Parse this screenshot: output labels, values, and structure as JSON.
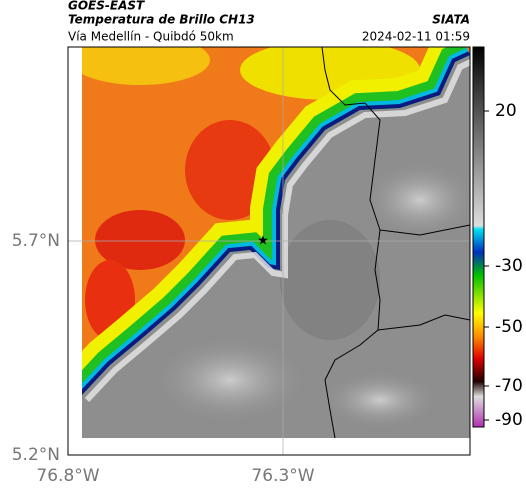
{
  "header": {
    "title": "GOES-EAST",
    "subtitle": "Temperatura de Brillo CH13",
    "source": "SIATA",
    "route": "Vía Medellín - Quibdó 50km",
    "datetime": "2024-02-11 01:59"
  },
  "axes": {
    "lat_labels": [
      "5.7°N",
      "5.2°N"
    ],
    "lon_labels": [
      "76.8°W",
      "76.3°W"
    ]
  },
  "colorbar": {
    "ticks": [
      20,
      -30,
      -50,
      -70,
      -90
    ]
  }
}
